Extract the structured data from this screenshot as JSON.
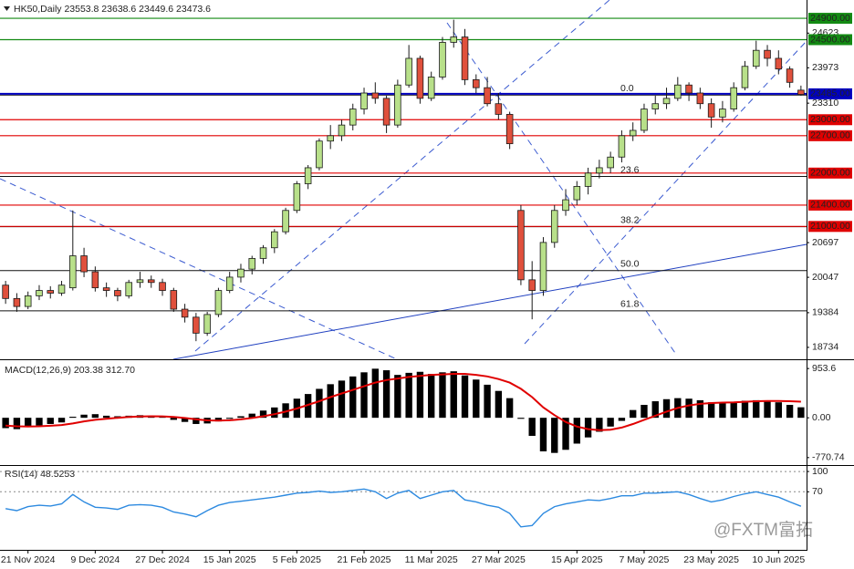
{
  "chart_data": [
    {
      "type": "candlestick",
      "title": "HK50,Daily  23553.8 23638.6 23449.6 23473.6",
      "up_color": "#b8e08a",
      "down_color": "#e0503c",
      "outline_color": "#1a1a1a",
      "xlim": [
        -0.5,
        71.5
      ],
      "xticks": [
        {
          "value": 2,
          "label": "21 Nov 2024"
        },
        {
          "value": 8,
          "label": "9 Dec 2024"
        },
        {
          "value": 14,
          "label": "27 Dec 2024"
        },
        {
          "value": 20,
          "label": "15 Jan 2025"
        },
        {
          "value": 26,
          "label": "5 Feb 2025"
        },
        {
          "value": 32,
          "label": "21 Feb 2025"
        },
        {
          "value": 38,
          "label": "11 Mar 2025"
        },
        {
          "value": 44,
          "label": "27 Mar 2025"
        },
        {
          "value": 51,
          "label": "15 Apr 2025"
        },
        {
          "value": 57,
          "label": "7 May 2025"
        },
        {
          "value": 63,
          "label": "23 May 2025"
        },
        {
          "value": 69,
          "label": "10 Jun 2025"
        }
      ],
      "ylim": [
        18511,
        25243
      ],
      "yticks": [
        24623,
        23973,
        23310,
        20697,
        20047,
        19384,
        18734
      ],
      "levels": [
        {
          "value": 24900,
          "label": "24900.00",
          "color": "#138a13"
        },
        {
          "value": 24500,
          "label": "24500.00",
          "color": "#138a13"
        },
        {
          "value": 23485,
          "label": "23485.00",
          "color": "#0000c0"
        },
        {
          "value": 23000,
          "label": "23000.00",
          "color": "#e00000"
        },
        {
          "value": 22700,
          "label": "22700.00",
          "color": "#e00000"
        },
        {
          "value": 22000,
          "label": "22000.00",
          "color": "#e00000"
        },
        {
          "value": 21400,
          "label": "21400.00",
          "color": "#e00000"
        },
        {
          "value": 21000,
          "label": "21000.00",
          "color": "#e00000"
        }
      ],
      "fib_levels": [
        {
          "value": 23461,
          "label": "0.0"
        },
        {
          "value": 21937,
          "label": "23.6"
        },
        {
          "value": 20995,
          "label": "38.2"
        },
        {
          "value": 20173,
          "label": "50.0"
        },
        {
          "value": 19419,
          "label": "61.8"
        }
      ],
      "open": [
        19900,
        19650,
        19500,
        19700,
        19800,
        19750,
        19850,
        20450,
        20150,
        19850,
        19800,
        19700,
        19950,
        20000,
        19950,
        19800,
        19450,
        19300,
        19000,
        19350,
        19800,
        20050,
        20200,
        20400,
        20600,
        20900,
        21300,
        21800,
        22100,
        22600,
        22700,
        22900,
        23200,
        23500,
        23400,
        22900,
        23650,
        24150,
        23400,
        23800,
        24450,
        24550,
        23750,
        23600,
        23300,
        23100,
        21300,
        20000,
        19800,
        20700,
        21300,
        21500,
        21750,
        22000,
        22100,
        22300,
        22700,
        22800,
        23200,
        23300,
        23400,
        23650,
        23500,
        23300,
        23050,
        23200,
        23600,
        24000,
        24300,
        24150,
        23950,
        23553.8
      ],
      "high": [
        19980,
        19750,
        19780,
        19900,
        19880,
        19980,
        21300,
        20600,
        20250,
        19950,
        19850,
        20000,
        20150,
        20080,
        20020,
        19850,
        19550,
        19380,
        19400,
        19850,
        20150,
        20300,
        20450,
        20650,
        20950,
        21350,
        21850,
        22150,
        22650,
        22900,
        23000,
        23300,
        23600,
        23700,
        23450,
        23750,
        24400,
        24200,
        23900,
        24550,
        24874,
        24700,
        23850,
        23800,
        23500,
        23150,
        21400,
        20350,
        20800,
        21400,
        21700,
        21850,
        22100,
        22250,
        22400,
        22800,
        22950,
        23300,
        23450,
        23600,
        23800,
        23700,
        23600,
        23400,
        23350,
        23700,
        24100,
        24480,
        24400,
        24300,
        24000,
        23638.6
      ],
      "low": [
        19550,
        19400,
        19450,
        19620,
        19650,
        19700,
        19800,
        20050,
        19780,
        19680,
        19600,
        19650,
        19850,
        19850,
        19700,
        19400,
        19200,
        18850,
        18950,
        19300,
        19750,
        19950,
        20100,
        20300,
        20500,
        20850,
        21250,
        21700,
        22050,
        22450,
        22600,
        22800,
        23100,
        23300,
        22750,
        22850,
        23600,
        23300,
        23350,
        23750,
        24350,
        23650,
        23500,
        23250,
        23000,
        22450,
        19900,
        19260,
        19700,
        20600,
        21200,
        21400,
        21600,
        21900,
        22000,
        22200,
        22600,
        22750,
        23100,
        23200,
        23350,
        23350,
        23200,
        22850,
        22950,
        23150,
        23550,
        23950,
        24000,
        23850,
        23600,
        23449.6
      ],
      "close": [
        19650,
        19500,
        19700,
        19800,
        19750,
        19900,
        20450,
        20150,
        19850,
        19800,
        19700,
        19950,
        20000,
        19950,
        19800,
        19450,
        19300,
        19000,
        19350,
        19800,
        20050,
        20200,
        20400,
        20600,
        20900,
        21300,
        21800,
        22100,
        22600,
        22700,
        22900,
        23200,
        23500,
        23400,
        22900,
        23650,
        24150,
        23400,
        23800,
        24450,
        24550,
        23750,
        23600,
        23300,
        23100,
        22550,
        20000,
        19800,
        20700,
        21300,
        21500,
        21750,
        22000,
        22100,
        22300,
        22700,
        22800,
        23200,
        23300,
        23400,
        23650,
        23500,
        23300,
        23050,
        23200,
        23600,
        24000,
        24300,
        24150,
        23950,
        23700,
        23473.6
      ]
    },
    {
      "type": "macd",
      "title": "MACD(12,26,9) 203.38 312.70",
      "ylim": [
        -915,
        1115
      ],
      "yticks": [
        953.6,
        {
          "value": 0,
          "label": "0.00"
        },
        -770.74
      ],
      "histogram_color": "#000000",
      "signal_color": "#e00000",
      "histogram": [
        -200,
        -220,
        -180,
        -150,
        -120,
        -90,
        20,
        60,
        70,
        40,
        30,
        40,
        50,
        40,
        20,
        -40,
        -80,
        -120,
        -110,
        -70,
        -20,
        30,
        80,
        140,
        200,
        280,
        370,
        460,
        560,
        650,
        720,
        800,
        880,
        950,
        920,
        830,
        870,
        890,
        850,
        880,
        900,
        820,
        740,
        640,
        520,
        380,
        -20,
        -350,
        -650,
        -680,
        -620,
        -500,
        -380,
        -270,
        -170,
        -60,
        150,
        250,
        320,
        360,
        380,
        370,
        340,
        300,
        290,
        310,
        330,
        340,
        330,
        300,
        250,
        203.38
      ],
      "signal": [
        -150,
        -165,
        -170,
        -165,
        -155,
        -140,
        -110,
        -70,
        -40,
        -20,
        0,
        15,
        25,
        30,
        28,
        15,
        -5,
        -30,
        -50,
        -55,
        -48,
        -30,
        -5,
        30,
        70,
        120,
        180,
        250,
        320,
        400,
        470,
        540,
        610,
        680,
        730,
        760,
        790,
        810,
        830,
        840,
        850,
        850,
        830,
        800,
        750,
        680,
        560,
        400,
        200,
        50,
        -80,
        -170,
        -220,
        -240,
        -230,
        -190,
        -120,
        -40,
        40,
        120,
        190,
        240,
        270,
        285,
        295,
        300,
        310,
        320,
        325,
        325,
        320,
        312.7
      ]
    },
    {
      "type": "line",
      "title": "RSI(14) 48.5253",
      "ylim": [
        -16,
        108.2
      ],
      "yticks": [
        100,
        70
      ],
      "grid": true,
      "color": "#2d8ae0",
      "values": [
        45,
        42,
        48,
        50,
        49,
        52,
        66,
        55,
        47,
        46,
        44,
        50,
        51,
        50,
        47,
        40,
        37,
        33,
        42,
        50,
        54,
        56,
        58,
        60,
        62,
        65,
        68,
        69,
        71,
        69,
        70,
        72,
        74,
        70,
        60,
        68,
        72,
        60,
        65,
        70,
        72,
        58,
        55,
        50,
        47,
        38,
        18,
        20,
        38,
        48,
        52,
        55,
        58,
        57,
        60,
        64,
        64,
        68,
        68,
        69,
        70,
        66,
        60,
        55,
        58,
        63,
        67,
        70,
        66,
        62,
        55,
        48.5253
      ]
    }
  ],
  "watermark": "@FXTM富拓"
}
